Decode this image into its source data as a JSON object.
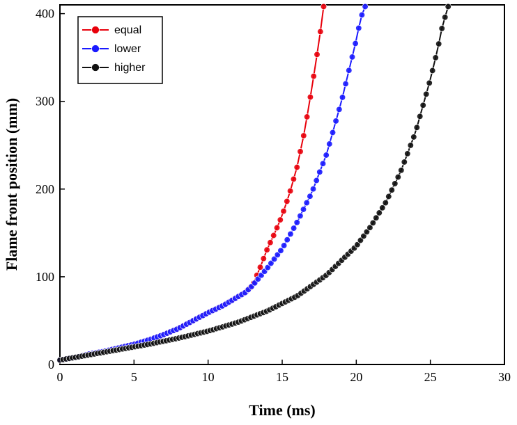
{
  "chart_data": {
    "type": "line",
    "title": "",
    "xlabel": "Time (ms)",
    "ylabel": "Flame front position (mm)",
    "xlim": [
      0,
      30
    ],
    "ylim": [
      0,
      410
    ],
    "xticks": [
      0,
      5,
      10,
      15,
      20,
      25,
      30
    ],
    "yticks": [
      0,
      100,
      200,
      300,
      400
    ],
    "grid": false,
    "legend_position": "top-left",
    "series": [
      {
        "name": "equal",
        "color": "#e8000b",
        "x": [
          0,
          1,
          2,
          3,
          4,
          5,
          6,
          7,
          8,
          9,
          10,
          11,
          12,
          12.5,
          13,
          13.5,
          14,
          14.5,
          15,
          15.5,
          16,
          16.5,
          17,
          17.5,
          17.8
        ],
        "y": [
          5,
          8,
          12,
          15,
          19,
          23,
          28,
          34,
          41,
          50,
          59,
          67,
          77,
          82,
          90,
          110,
          132,
          150,
          170,
          195,
          225,
          265,
          315,
          370,
          408
        ]
      },
      {
        "name": "lower",
        "color": "#1a1aff",
        "x": [
          0,
          1,
          2,
          3,
          4,
          5,
          6,
          7,
          8,
          9,
          10,
          11,
          12,
          12.5,
          13,
          14,
          15,
          16,
          17,
          18,
          19,
          19.5,
          20,
          20.3,
          20.6
        ],
        "y": [
          5,
          8,
          12,
          15,
          19,
          23,
          28,
          34,
          41,
          50,
          59,
          67,
          77,
          82,
          90,
          110,
          132,
          162,
          196,
          240,
          300,
          335,
          370,
          395,
          408
        ]
      },
      {
        "name": "higher",
        "color": "#111111",
        "x": [
          0,
          2,
          4,
          6,
          8,
          10,
          12,
          14,
          16,
          18,
          20,
          21,
          22,
          23,
          24,
          24.5,
          25,
          25.5,
          25.8,
          26.2
        ],
        "y": [
          5,
          11,
          17,
          23,
          30,
          38,
          48,
          61,
          78,
          102,
          135,
          158,
          185,
          220,
          265,
          295,
          325,
          360,
          385,
          408
        ]
      }
    ]
  }
}
